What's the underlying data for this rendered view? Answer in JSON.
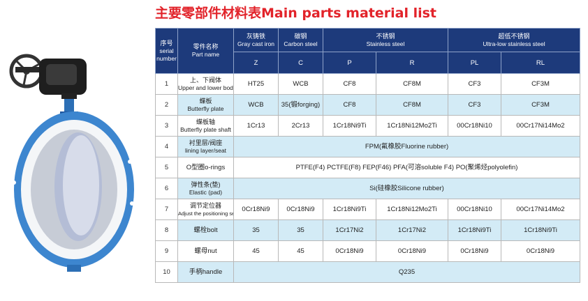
{
  "title": "主要零部件材料表Main parts material list",
  "header": {
    "serial": {
      "zh": "序号",
      "en1": "serial",
      "en2": "number"
    },
    "part_name": {
      "zh": "零件名称",
      "en": "Part name"
    },
    "groups": [
      {
        "zh": "灰铸铁",
        "en": "Gray cast iron"
      },
      {
        "zh": "碳钢",
        "en": "Carbon steel"
      },
      {
        "zh": "不锈钢",
        "en": "Stainless steel"
      },
      {
        "zh": "超低不锈钢",
        "en": "Ultra-low stainless steel"
      }
    ],
    "codes": [
      "Z",
      "C",
      "P",
      "R",
      "PL",
      "RL"
    ]
  },
  "rows": [
    {
      "num": "1",
      "zh": "上、下阀体",
      "en": "Upper and lower body",
      "cells": [
        "HT25",
        "WCB",
        "CF8",
        "CF8M",
        "CF3",
        "CF3M"
      ]
    },
    {
      "num": "2",
      "zh": "蝶板",
      "en": "Butterfly plate",
      "cells": [
        "WCB",
        "35(锻forging)",
        "CF8",
        "CF8M",
        "CF3",
        "CF3M"
      ]
    },
    {
      "num": "3",
      "zh": "蝶板轴",
      "en": "Butterfly plate shaft",
      "cells": [
        "1Cr13",
        "2Cr13",
        "1Cr18Ni9Ti",
        "1Cr18Ni12Mo2Ti",
        "00Cr18Ni10",
        "00Cr17Ni14Mo2"
      ]
    },
    {
      "num": "4",
      "zh": "衬里层/阀座",
      "en": "lining layer/seat",
      "span": "FPM(氟橡胶Fluorine rubber)"
    },
    {
      "num": "5",
      "single": "O型圈o-rings",
      "span": "PTFE(F4) PCTFE(F8) FEP(F46) PFA(可溶soluble F4) PO(聚烯烃polyolefin)"
    },
    {
      "num": "6",
      "zh": "弹性条(垫)",
      "en": "Elastic (pad)",
      "span": "Si(硅橡胶Silicone rubber)"
    },
    {
      "num": "7",
      "zh": "调节定位器",
      "en_tiny": "Adjust the positioning seat",
      "cells": [
        "0Cr18Ni9",
        "0Cr18Ni9",
        "1Cr18Ni9Ti",
        "1Cr18Ni12Mo2Ti",
        "00Cr18Ni10",
        "00Cr17Ni14Mo2"
      ]
    },
    {
      "num": "8",
      "single": "螺栓bolt",
      "cells": [
        "35",
        "35",
        "1Cr17Ni2",
        "1Cr17Ni2",
        "1Cr18Ni9Ti",
        "1Cr18Ni9Ti"
      ]
    },
    {
      "num": "9",
      "single": "螺母nut",
      "cells": [
        "45",
        "45",
        "0Cr18Ni9",
        "0Cr18Ni9",
        "0Cr18Ni9",
        "0Cr18Ni9"
      ]
    },
    {
      "num": "10",
      "single": "手柄handle",
      "span": "Q235"
    }
  ]
}
